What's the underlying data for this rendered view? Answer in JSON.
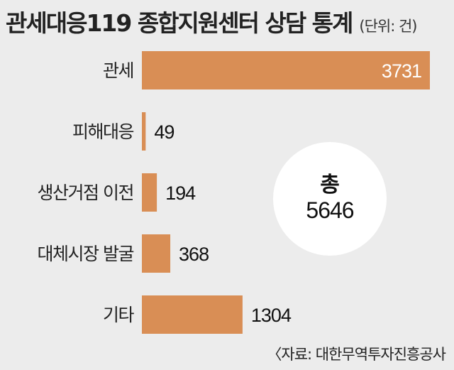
{
  "header": {
    "title": "관세대응119 종합지원센터 상담 통계",
    "unit": "(단위: 건)"
  },
  "total": {
    "label": "총",
    "value": "5646"
  },
  "source": "〈자료: 대한무역투자진흥공사",
  "colors": {
    "bar": "#d98e55",
    "background": "#ececec",
    "bubble": "#ffffff"
  },
  "chart_data": {
    "type": "bar",
    "orientation": "horizontal",
    "categories": [
      "관세",
      "피해대응",
      "생산거점 이전",
      "대체시장 발굴",
      "기타"
    ],
    "values": [
      3731,
      49,
      194,
      368,
      1304
    ],
    "value_labels": [
      "3731",
      "49",
      "194",
      "368",
      "1304"
    ],
    "xlim": [
      0,
      3731
    ],
    "grid": false
  }
}
